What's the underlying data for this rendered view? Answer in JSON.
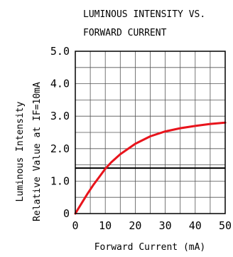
{
  "chart_data": {
    "type": "line",
    "title_lines": [
      "LUMINOUS INTENSITY VS.",
      "FORWARD CURRENT"
    ],
    "xlabel": "Forward Current (mA)",
    "ylabel_lines": [
      "Luminous Intensity",
      "Relative Value at IF=10mA"
    ],
    "xlim": [
      0,
      50
    ],
    "ylim": [
      0,
      5.0
    ],
    "x_ticks": [
      0,
      10,
      20,
      30,
      40,
      50
    ],
    "x_tick_labels": [
      "0",
      "10",
      "20",
      "30",
      "40",
      "50"
    ],
    "y_ticks": [
      0,
      1.0,
      2.0,
      3.0,
      4.0,
      5.0
    ],
    "y_tick_labels": [
      "0",
      "1.0",
      "2.0",
      "3.0",
      "4.0",
      "5.0"
    ],
    "grid": true,
    "reference_line": {
      "y": 1.4,
      "color": "#000000"
    },
    "series": [
      {
        "color": "#e8141c",
        "x": [
          0,
          2,
          4,
          6,
          8,
          10,
          12,
          15,
          20,
          25,
          30,
          35,
          40,
          45,
          50
        ],
        "y": [
          0,
          0.3,
          0.6,
          0.88,
          1.13,
          1.38,
          1.58,
          1.83,
          2.15,
          2.38,
          2.53,
          2.63,
          2.7,
          2.76,
          2.8
        ]
      }
    ]
  }
}
